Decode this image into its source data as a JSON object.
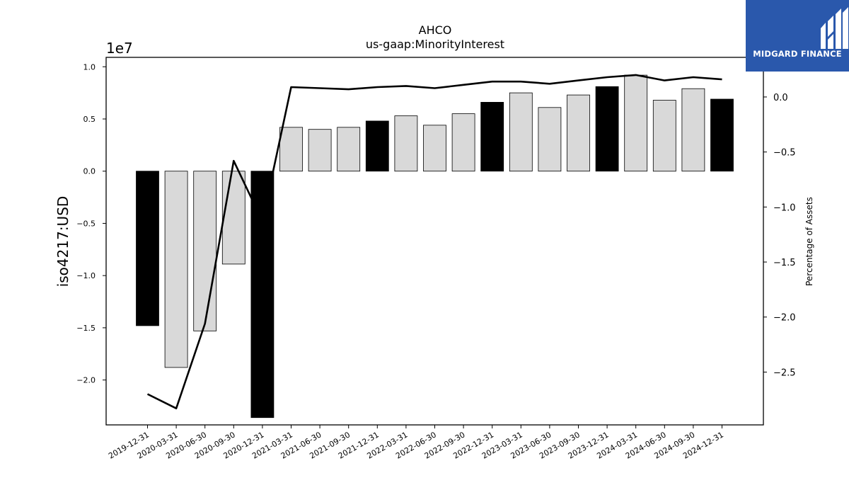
{
  "chart_data": {
    "type": "bar",
    "title": "AHCO",
    "subtitle": "us-gaap:MinorityInterest",
    "ylabel": "iso4217:USD",
    "y2label": "Percentage of Assets",
    "y_offset_label": "1e7",
    "y_scale": 10000000,
    "ylim": [
      -24300000,
      10900000
    ],
    "y2lim": [
      -2.98,
      0.36
    ],
    "yticks": [
      -2.0,
      -1.5,
      -1.0,
      -0.5,
      0.0,
      0.5,
      1.0
    ],
    "y2ticks": [
      -2.5,
      -2.0,
      -1.5,
      -1.0,
      -0.5,
      0.0
    ],
    "categories": [
      "2019-12-31",
      "2020-03-31",
      "2020-06-30",
      "2020-09-30",
      "2020-12-31",
      "2021-03-31",
      "2021-06-30",
      "2021-09-30",
      "2021-12-31",
      "2022-03-31",
      "2022-06-30",
      "2022-09-30",
      "2022-12-31",
      "2023-03-31",
      "2023-06-30",
      "2023-09-30",
      "2023-12-31",
      "2024-03-31",
      "2024-06-30",
      "2024-09-30",
      "2024-12-31"
    ],
    "series": [
      {
        "type": "bar",
        "values": [
          -14800000,
          -18800000,
          -15300000,
          -8900000,
          -23600000,
          4200000,
          4000000,
          4200000,
          4800000,
          5300000,
          4400000,
          5500000,
          6600000,
          7500000,
          6100000,
          7300000,
          8100000,
          9200000,
          6800000,
          7900000,
          6900000
        ],
        "colors": [
          "#000000",
          "#d9d9d9",
          "#d9d9d9",
          "#d9d9d9",
          "#000000",
          "#d9d9d9",
          "#d9d9d9",
          "#d9d9d9",
          "#000000",
          "#d9d9d9",
          "#d9d9d9",
          "#d9d9d9",
          "#000000",
          "#d9d9d9",
          "#d9d9d9",
          "#d9d9d9",
          "#000000",
          "#d9d9d9",
          "#d9d9d9",
          "#d9d9d9",
          "#000000"
        ]
      },
      {
        "type": "line",
        "axis": "right",
        "color": "#000000",
        "values": [
          -2.7,
          -2.83,
          -2.06,
          -0.58,
          -1.13,
          0.09,
          0.08,
          0.07,
          0.09,
          0.1,
          0.08,
          0.11,
          0.14,
          0.14,
          0.12,
          0.15,
          0.18,
          0.2,
          0.15,
          0.18,
          0.16
        ]
      }
    ]
  },
  "brand": {
    "name": "MIDGARD FINANCE",
    "bg": "#2a58ac"
  }
}
